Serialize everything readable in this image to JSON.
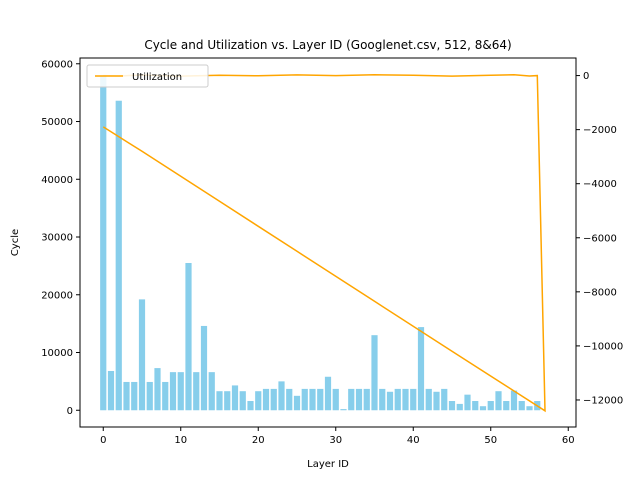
{
  "chart_data": {
    "type": "bar",
    "title": "Cycle and Utilization vs. Layer ID (Googlenet.csv, 512, 8&64)",
    "xlabel": "Layer ID",
    "ylabel": "Cycle",
    "xlim": [
      -3,
      61
    ],
    "ylim": [
      -2900,
      61000
    ],
    "y2lim": [
      -13000,
      650
    ],
    "xticks": [
      0,
      10,
      20,
      30,
      40,
      50,
      60
    ],
    "yticks": [
      0,
      10000,
      20000,
      30000,
      40000,
      50000,
      60000
    ],
    "y2ticks": [
      -12000,
      -10000,
      -8000,
      -6000,
      -4000,
      -2000,
      0
    ],
    "legend": {
      "position": "upper-left",
      "entries": [
        "Utilization"
      ]
    },
    "colors": {
      "bars": "#87ceeb",
      "line": "#ffa500"
    },
    "series": [
      {
        "axis": "left",
        "kind": "bar",
        "x": [
          0,
          1,
          2,
          3,
          4,
          5,
          6,
          7,
          8,
          9,
          10,
          11,
          12,
          13,
          14,
          15,
          16,
          17,
          18,
          19,
          20,
          21,
          22,
          23,
          24,
          25,
          26,
          27,
          28,
          29,
          30,
          31,
          32,
          33,
          34,
          35,
          36,
          37,
          38,
          39,
          40,
          41,
          42,
          43,
          44,
          45,
          46,
          47,
          48,
          49,
          50,
          51,
          52,
          53,
          54,
          55,
          56,
          57
        ],
        "values": [
          58000,
          6800,
          53600,
          4900,
          4900,
          19200,
          4900,
          7300,
          4900,
          6600,
          6600,
          25500,
          6600,
          14600,
          6600,
          3300,
          3300,
          4300,
          3300,
          1600,
          3300,
          3700,
          3700,
          5000,
          3700,
          2500,
          3700,
          3700,
          3700,
          5800,
          3700,
          200,
          3700,
          3700,
          3700,
          13000,
          3700,
          3200,
          3700,
          3700,
          3700,
          14400,
          3700,
          3200,
          3700,
          1600,
          1100,
          2700,
          1600,
          700,
          1600,
          3300,
          1600,
          3400,
          1600,
          700,
          1600,
          0
        ]
      },
      {
        "name": "Utilization",
        "axis": "right",
        "kind": "line",
        "x": [
          0,
          2,
          5,
          10,
          15,
          20,
          25,
          30,
          35,
          40,
          45,
          50,
          53,
          55,
          56,
          57,
          45,
          35,
          25,
          15,
          5,
          0
        ],
        "values": [
          0,
          -15,
          20,
          -20,
          15,
          -10,
          25,
          0,
          30,
          10,
          -20,
          15,
          30,
          -15,
          0,
          -12400,
          -10200,
          -8350,
          -6500,
          -4650,
          -2800,
          -1900
        ]
      }
    ]
  }
}
